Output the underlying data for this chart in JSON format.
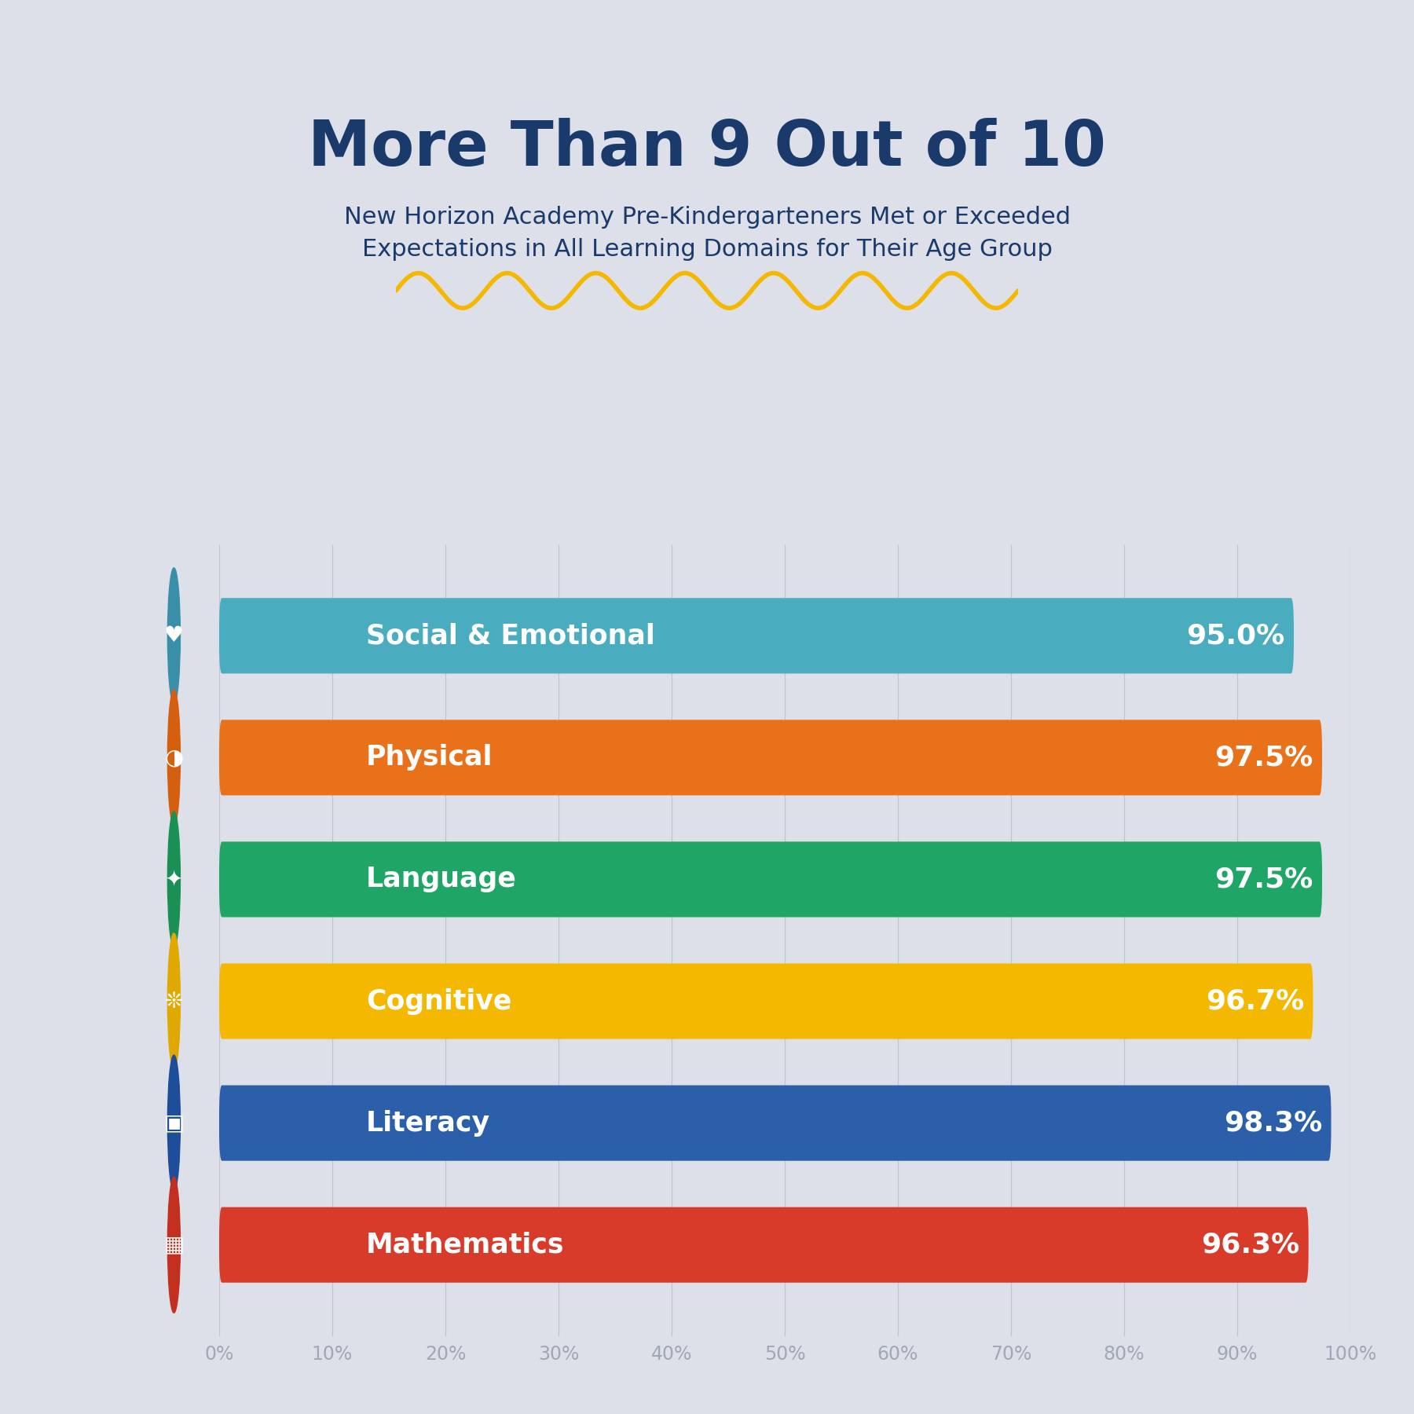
{
  "title_main": "More Than 9 Out of 10",
  "title_sub": "New Horizon Academy Pre-Kindergarteners Met or Exceeded\nExpectations in All Learning Domains for Their Age Group",
  "title_color": "#1a3a6b",
  "background_color": "#dde0e8",
  "categories": [
    "Social & Emotional",
    "Physical",
    "Language",
    "Cognitive",
    "Literacy",
    "Mathematics"
  ],
  "values": [
    95.0,
    97.5,
    97.5,
    96.7,
    98.3,
    96.3
  ],
  "bar_colors": [
    "#4aacbf",
    "#e8711a",
    "#1fa667",
    "#f5b800",
    "#2b5faa",
    "#d93b2b"
  ],
  "circle_colors": [
    "#3a8fa8",
    "#d4600f",
    "#1a9057",
    "#e0a800",
    "#1e4d99",
    "#c43020"
  ],
  "value_labels": [
    "95.0%",
    "97.5%",
    "97.5%",
    "96.7%",
    "98.3%",
    "96.3%"
  ],
  "xlim": [
    0,
    100
  ],
  "xlabel_ticks": [
    0,
    10,
    20,
    30,
    40,
    50,
    60,
    70,
    80,
    90,
    100
  ],
  "xlabel_labels": [
    "0%",
    "10%",
    "20%",
    "30%",
    "40%",
    "50%",
    "60%",
    "70%",
    "80%",
    "90%",
    "100%"
  ],
  "tick_color": "#a0a8b8",
  "grid_color": "#c0c5d0",
  "wave_color": "#f5b800",
  "bar_height": 0.62,
  "bar_label_fontsize": 26,
  "category_fontsize": 25,
  "title_fontsize": 58,
  "subtitle_fontsize": 22,
  "tick_fontsize": 17
}
